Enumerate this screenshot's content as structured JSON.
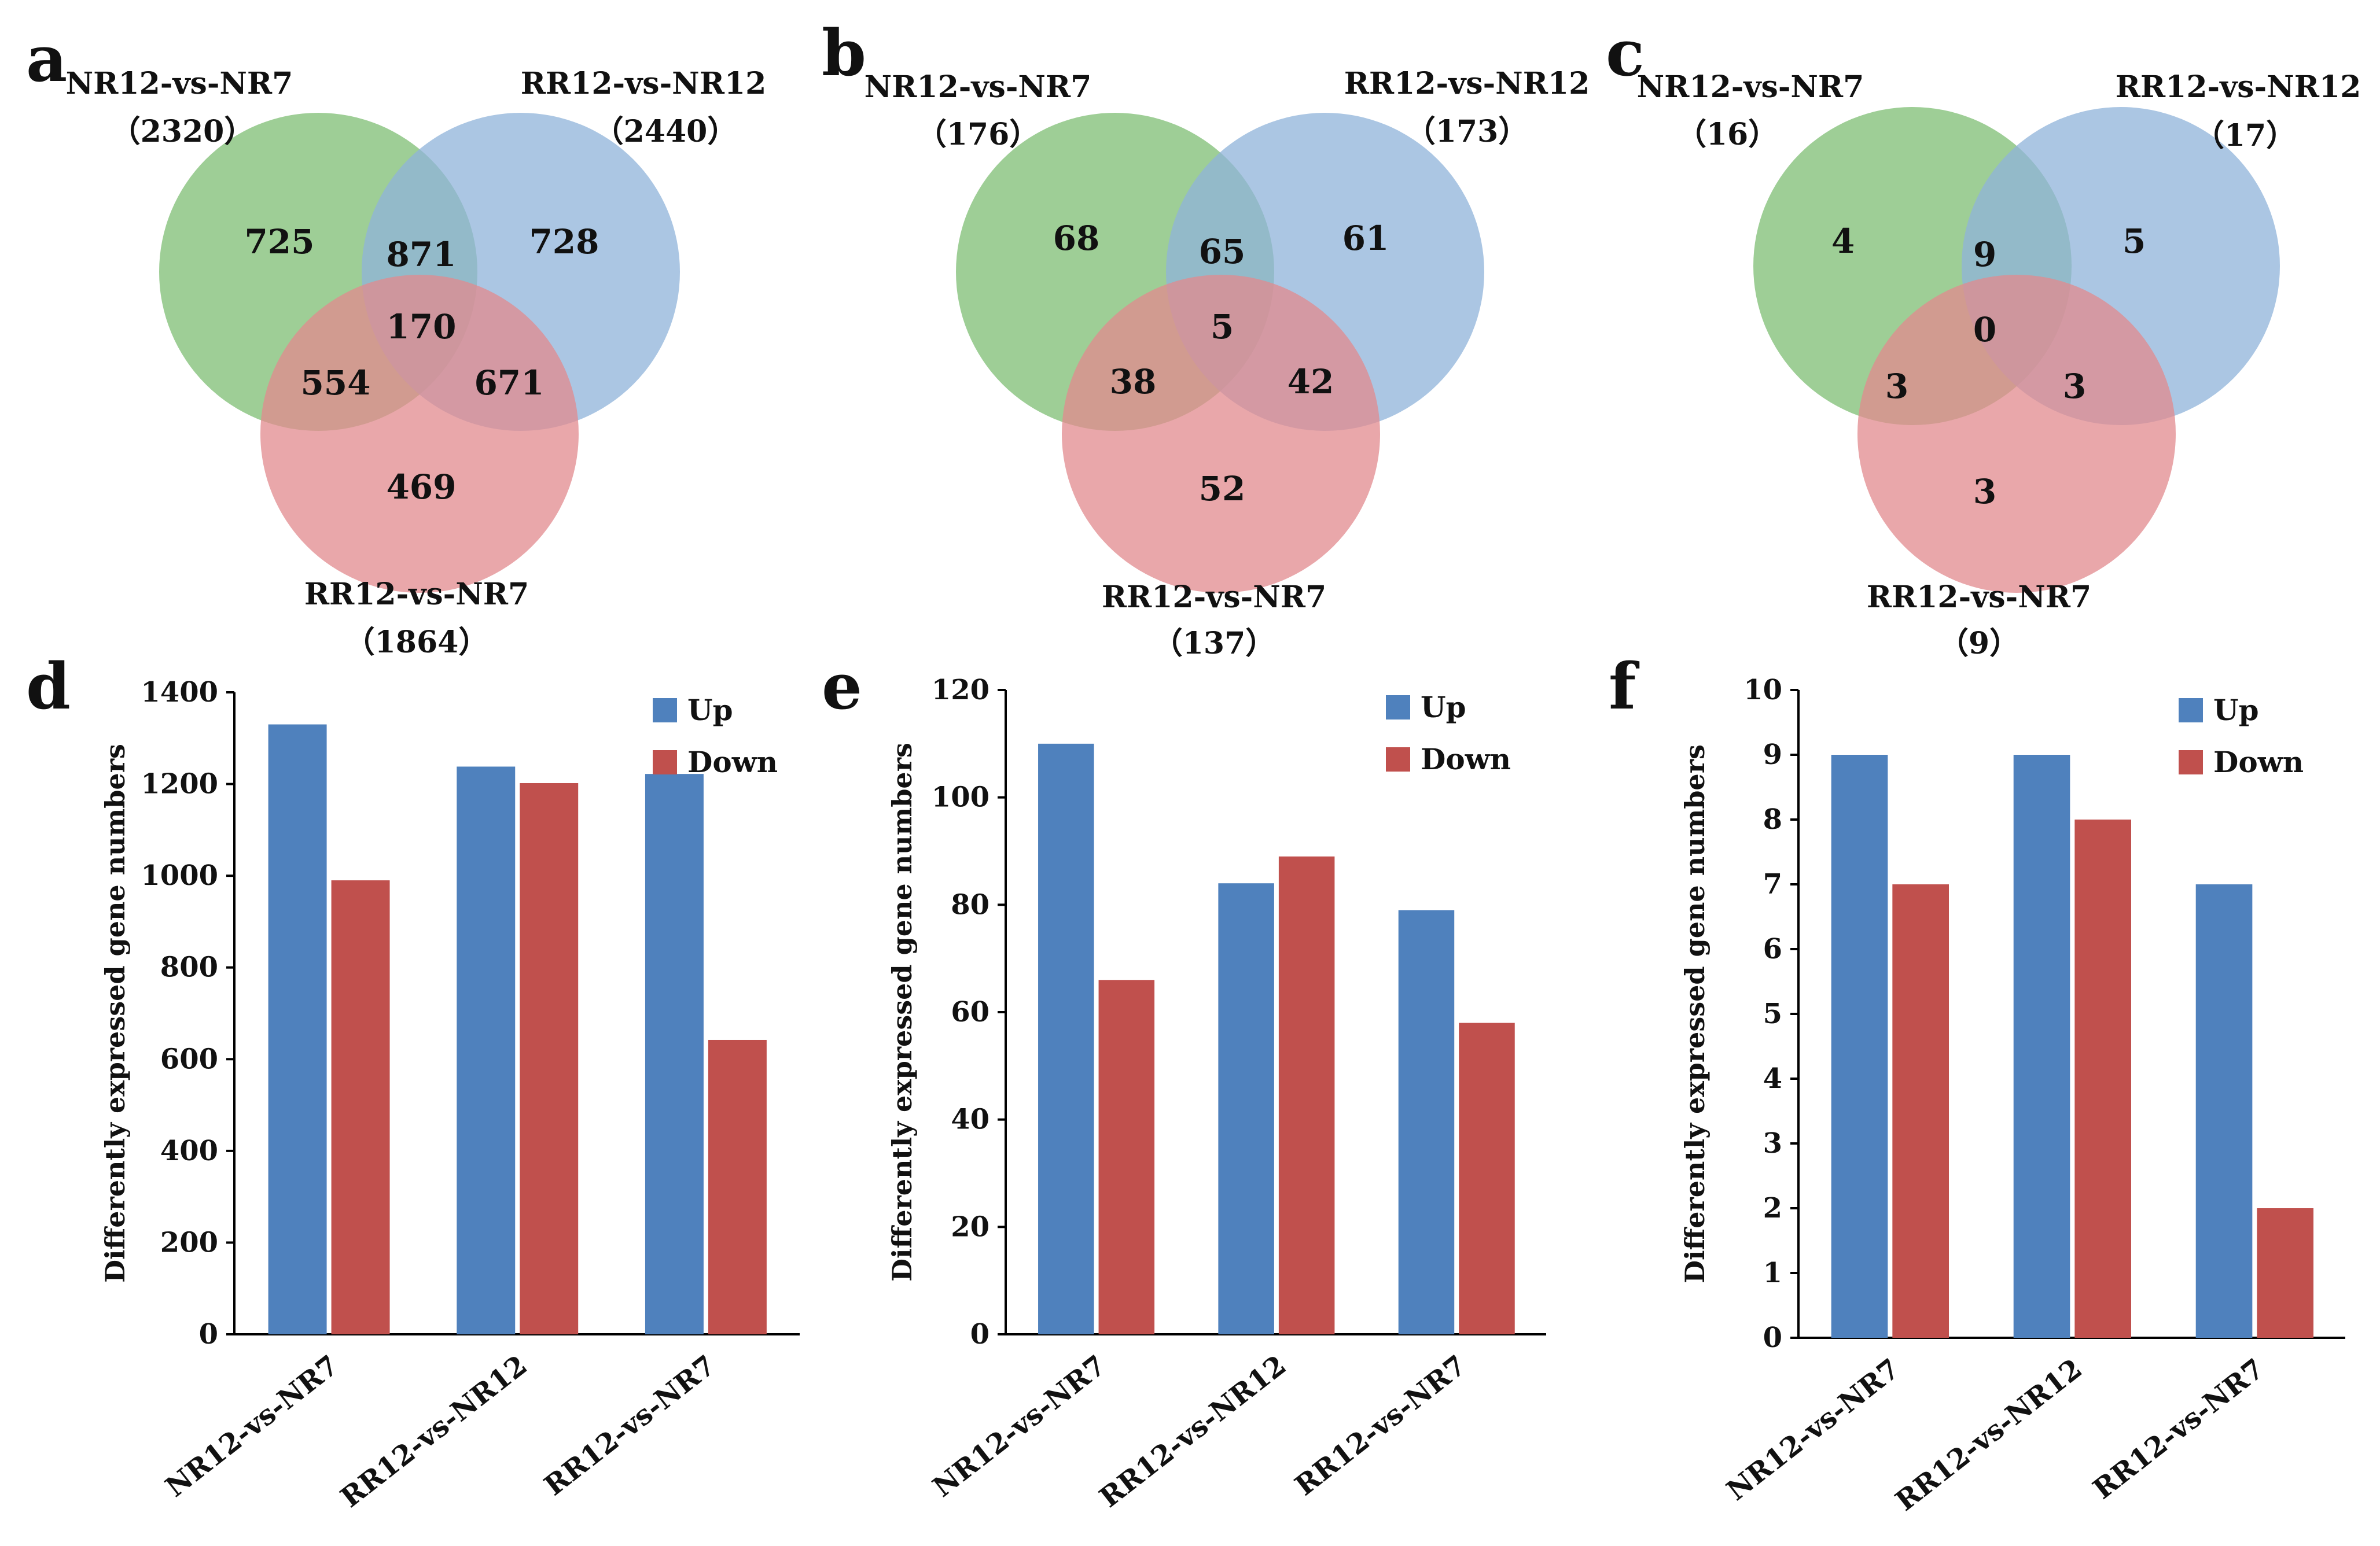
{
  "colors": {
    "up": "#4f81bd",
    "down": "#c0504d",
    "venn_green": "#7dbd73",
    "venn_blue": "#8fb3d9",
    "venn_red": "#e2898d"
  },
  "venn": [
    {
      "letter": "a",
      "set_a": {
        "name": "NR12-vs-NR7",
        "total": "（2320）"
      },
      "set_b": {
        "name": "RR12-vs-NR12",
        "total": "（2440）"
      },
      "set_c": {
        "name": "RR12-vs-NR7",
        "total": "（1864）"
      },
      "regions": {
        "a_only": "725",
        "b_only": "728",
        "c_only": "469",
        "ab": "871",
        "ac": "554",
        "bc": "671",
        "abc": "170"
      }
    },
    {
      "letter": "b",
      "set_a": {
        "name": "NR12-vs-NR7",
        "total": "（176）"
      },
      "set_b": {
        "name": "RR12-vs-NR12",
        "total": "（173）"
      },
      "set_c": {
        "name": "RR12-vs-NR7",
        "total": "（137）"
      },
      "regions": {
        "a_only": "68",
        "b_only": "61",
        "c_only": "52",
        "ab": "65",
        "ac": "38",
        "bc": "42",
        "abc": "5"
      }
    },
    {
      "letter": "c",
      "set_a": {
        "name": "NR12-vs-NR7",
        "total": "（16）"
      },
      "set_b": {
        "name": "RR12-vs-NR12",
        "total": "（17）"
      },
      "set_c": {
        "name": "RR12-vs-NR7",
        "total": "（9）"
      },
      "regions": {
        "a_only": "4",
        "b_only": "5",
        "c_only": "3",
        "ab": "9",
        "ac": "3",
        "bc": "3",
        "abc": "0"
      }
    }
  ],
  "chart_data": [
    {
      "letter": "d",
      "type": "bar",
      "categories": [
        "NR12-vs-NR7",
        "RR12-vs-NR12",
        "RR12-vs-NR7"
      ],
      "series": [
        {
          "name": "Up",
          "values": [
            1330,
            1238,
            1222
          ]
        },
        {
          "name": "Down",
          "values": [
            990,
            1202,
            642
          ]
        }
      ],
      "ylabel": "Differently expressed gene numbers",
      "ylim": [
        0,
        1400
      ],
      "yticks": [
        0,
        200,
        400,
        600,
        800,
        1000,
        1200,
        1400
      ],
      "legend": "top-right"
    },
    {
      "letter": "e",
      "type": "bar",
      "categories": [
        "NR12-vs-NR7",
        "RR12-vs-NR12",
        "RR12-vs-NR7"
      ],
      "series": [
        {
          "name": "Up",
          "values": [
            110,
            84,
            79
          ]
        },
        {
          "name": "Down",
          "values": [
            66,
            89,
            58
          ]
        }
      ],
      "ylabel": "Differently expressed gene numbers",
      "ylim": [
        0,
        120
      ],
      "yticks": [
        0,
        20,
        40,
        60,
        80,
        100,
        120
      ],
      "legend": "top-right"
    },
    {
      "letter": "f",
      "type": "bar",
      "categories": [
        "NR12-vs-NR7",
        "RR12-vs-NR12",
        "RR12-vs-NR7"
      ],
      "series": [
        {
          "name": "Up",
          "values": [
            9,
            9,
            7
          ]
        },
        {
          "name": "Down",
          "values": [
            7,
            8,
            2
          ]
        }
      ],
      "ylabel": "Differently expressed gene numbers",
      "ylim": [
        0,
        10
      ],
      "yticks": [
        0,
        1,
        2,
        3,
        4,
        5,
        6,
        7,
        8,
        9,
        10
      ],
      "legend": "top-right"
    }
  ]
}
